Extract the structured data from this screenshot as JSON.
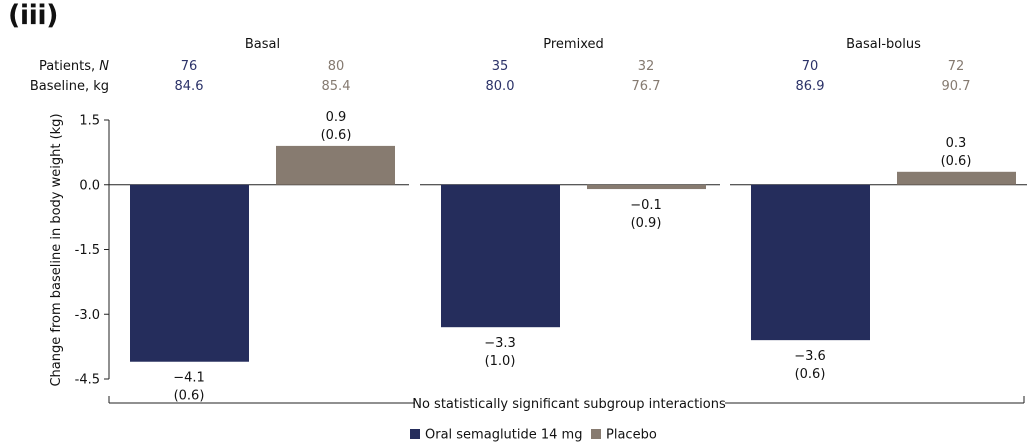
{
  "panel_label": "(iii)",
  "row_labels": {
    "patients_prefix": "Patients, ",
    "patients_italic": "N",
    "baseline": "Baseline, kg"
  },
  "colors": {
    "semaglutide": "#252d5c",
    "placebo": "#877b70",
    "semaglutide_text": "#2b3268",
    "placebo_text": "#857a70"
  },
  "chart_data": {
    "type": "bar",
    "ylabel": "Change from baseline in body weight (kg)",
    "ylim": [
      -4.5,
      1.5
    ],
    "yticks": [
      "1.5",
      "0.0",
      "-1.5",
      "-3.0",
      "-4.5"
    ],
    "series": [
      {
        "name": "Oral semaglutide 14 mg"
      },
      {
        "name": "Placebo"
      }
    ],
    "groups": [
      {
        "name": "Basal",
        "patients": [
          "76",
          "80"
        ],
        "baseline": [
          "84.6",
          "85.4"
        ],
        "values": [
          -4.1,
          0.9
        ],
        "value_labels": [
          "−4.1",
          "0.9"
        ],
        "se_labels": [
          "(0.6)",
          "(0.6)"
        ]
      },
      {
        "name": "Premixed",
        "patients": [
          "35",
          "32"
        ],
        "baseline": [
          "80.0",
          "76.7"
        ],
        "values": [
          -3.3,
          -0.1
        ],
        "value_labels": [
          "−3.3",
          "−0.1"
        ],
        "se_labels": [
          "(1.0)",
          "(0.9)"
        ]
      },
      {
        "name": "Basal-bolus",
        "patients": [
          "70",
          "72"
        ],
        "baseline": [
          "86.9",
          "90.7"
        ],
        "values": [
          -3.6,
          0.3
        ],
        "value_labels": [
          "−3.6",
          "0.3"
        ],
        "se_labels": [
          "(0.6)",
          "(0.6)"
        ]
      }
    ],
    "annotation": "No statistically significant subgroup interactions",
    "legend_position": "bottom-center"
  }
}
